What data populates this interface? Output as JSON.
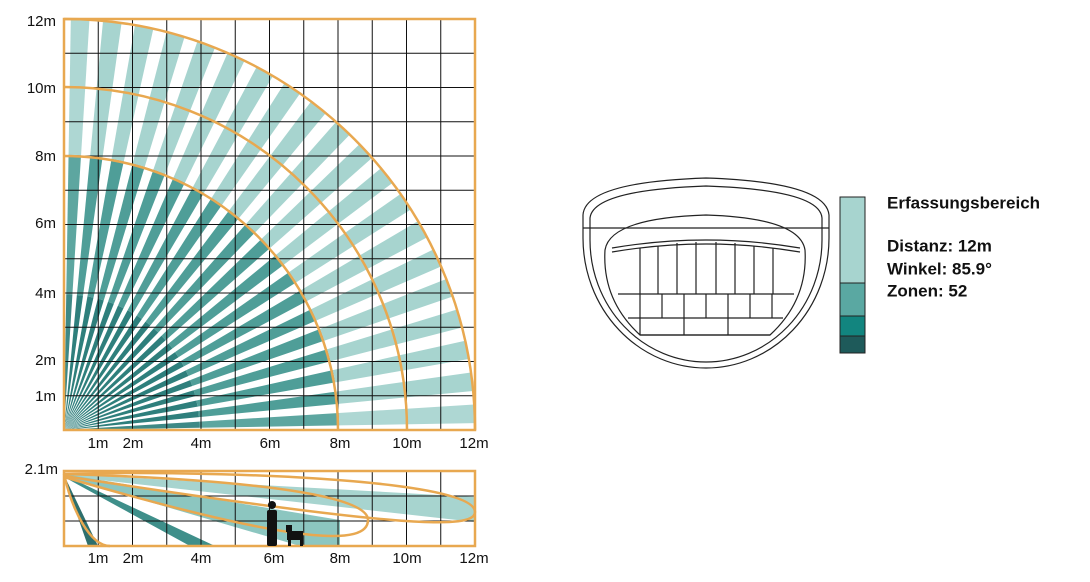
{
  "top_view": {
    "y_labels": [
      "12m",
      "10m",
      "8m",
      "6m",
      "4m",
      "2m",
      "1m"
    ],
    "x_labels": [
      "1m",
      "2m",
      "4m",
      "6m",
      "8m",
      "10m",
      "12m"
    ]
  },
  "side_view": {
    "y_label": "2.1m",
    "x_labels": [
      "1m",
      "2m",
      "4m",
      "6m",
      "8m",
      "10m",
      "12m"
    ]
  },
  "legend": {
    "title": "Erfassungsbereich",
    "lines": [
      "Distanz: 12m",
      "Winkel: 85.9°",
      "Zonen: 52"
    ]
  }
}
